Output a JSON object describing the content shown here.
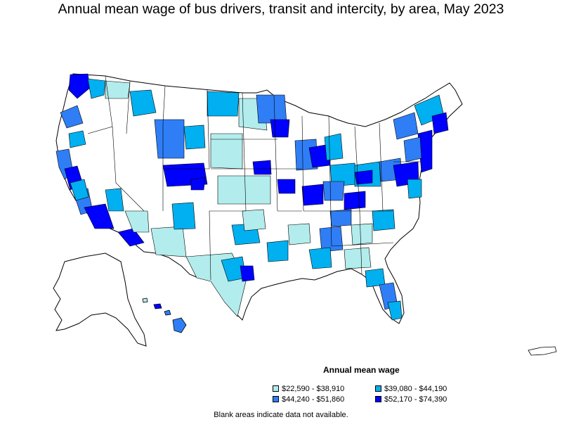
{
  "title": "Annual mean wage of bus drivers, transit and intercity, by area, May 2023",
  "legend": {
    "title": "Annual mean wage",
    "items": [
      {
        "label": "$22,590 - $38,910",
        "color": "#b3ecec"
      },
      {
        "label": "$39,080 - $44,190",
        "color": "#00b0f0"
      },
      {
        "label": "$44,240 - $51,860",
        "color": "#2f7ef5"
      },
      {
        "label": "$52,170 - $74,390",
        "color": "#0000ff"
      }
    ]
  },
  "note": "Blank areas indicate data not available.",
  "colors": {
    "blank": "#ffffff",
    "border": "#000000",
    "tier1": "#b3ecec",
    "tier2": "#00b0f0",
    "tier3": "#2f7ef5",
    "tier4": "#0000ff"
  }
}
